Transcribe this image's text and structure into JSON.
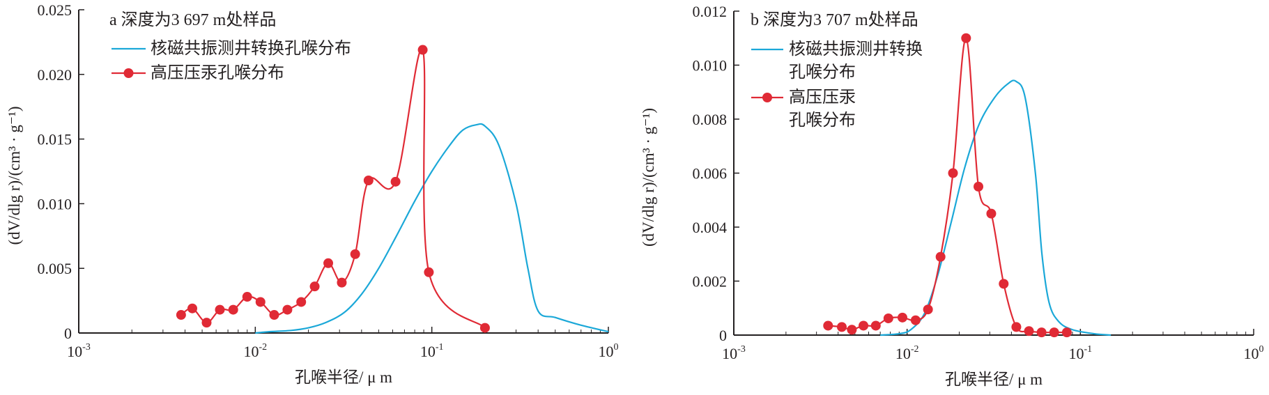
{
  "chart_data": [
    {
      "type": "line",
      "title": "a 深度为3 697 m处样品",
      "xscale": "log",
      "xlim": [
        0.001,
        1
      ],
      "ylim": [
        0,
        0.025
      ],
      "x_ticks": [
        {
          "value": 0.001,
          "base": "10",
          "exp": "-3"
        },
        {
          "value": 0.01,
          "base": "10",
          "exp": "-2"
        },
        {
          "value": 0.1,
          "base": "10",
          "exp": "-1"
        },
        {
          "value": 1,
          "base": "10",
          "exp": "0"
        }
      ],
      "y_ticks": [
        {
          "value": 0,
          "label": "0"
        },
        {
          "value": 0.005,
          "label": "0.005"
        },
        {
          "value": 0.01,
          "label": "0.010"
        },
        {
          "value": 0.015,
          "label": "0.015"
        },
        {
          "value": 0.02,
          "label": "0.020"
        },
        {
          "value": 0.025,
          "label": "0.025"
        }
      ],
      "xlabel": "孔喉半径/ μ m",
      "ylabel": "(dV/dlg r)/(cm³ · g⁻¹)",
      "grid": false,
      "legend_position": "top-left",
      "series": [
        {
          "name": "核磁共振测井转换孔喉分布",
          "color": "#1ba8d8",
          "marker": "none",
          "points": [
            [
              0.01,
              0
            ],
            [
              0.012,
              0.0001
            ],
            [
              0.016,
              0.0002
            ],
            [
              0.02,
              0.0004
            ],
            [
              0.025,
              0.0008
            ],
            [
              0.032,
              0.0016
            ],
            [
              0.04,
              0.003
            ],
            [
              0.05,
              0.005
            ],
            [
              0.063,
              0.0075
            ],
            [
              0.08,
              0.0102
            ],
            [
              0.1,
              0.0125
            ],
            [
              0.126,
              0.0145
            ],
            [
              0.15,
              0.0157
            ],
            [
              0.178,
              0.0161
            ],
            [
              0.2,
              0.016
            ],
            [
              0.24,
              0.0145
            ],
            [
              0.3,
              0.01
            ],
            [
              0.35,
              0.005
            ],
            [
              0.4,
              0.0017
            ],
            [
              0.5,
              0.0012
            ],
            [
              0.7,
              0.0006
            ],
            [
              1.0,
              0.0001
            ]
          ]
        },
        {
          "name": "高压压汞孔喉分布",
          "color": "#e02a35",
          "marker": "circle",
          "points": [
            [
              0.0038,
              0.0014
            ],
            [
              0.0044,
              0.0019
            ],
            [
              0.0053,
              0.0008
            ],
            [
              0.0063,
              0.0018
            ],
            [
              0.0075,
              0.0018
            ],
            [
              0.009,
              0.0028
            ],
            [
              0.0107,
              0.0024
            ],
            [
              0.0128,
              0.0014
            ],
            [
              0.0152,
              0.0018
            ],
            [
              0.0182,
              0.0024
            ],
            [
              0.0217,
              0.0036
            ],
            [
              0.0259,
              0.0054
            ],
            [
              0.0309,
              0.0039
            ],
            [
              0.0368,
              0.0061
            ],
            [
              0.0438,
              0.0118
            ],
            [
              0.0623,
              0.0117
            ],
            [
              0.0888,
              0.0219
            ],
            [
              0.0962,
              0.0047
            ],
            [
              0.2,
              0.0004
            ]
          ]
        }
      ]
    },
    {
      "type": "line",
      "title": "b 深度为3 707 m处样品",
      "xscale": "log",
      "xlim": [
        0.001,
        1
      ],
      "ylim": [
        0,
        0.012
      ],
      "x_ticks": [
        {
          "value": 0.001,
          "base": "10",
          "exp": "-3"
        },
        {
          "value": 0.01,
          "base": "10",
          "exp": "-2"
        },
        {
          "value": 0.1,
          "base": "10",
          "exp": "-1"
        },
        {
          "value": 1,
          "base": "10",
          "exp": "0"
        }
      ],
      "y_ticks": [
        {
          "value": 0,
          "label": "0"
        },
        {
          "value": 0.002,
          "label": "0.002"
        },
        {
          "value": 0.004,
          "label": "0.004"
        },
        {
          "value": 0.006,
          "label": "0.006"
        },
        {
          "value": 0.008,
          "label": "0.008"
        },
        {
          "value": 0.01,
          "label": "0.010"
        },
        {
          "value": 0.012,
          "label": "0.012"
        }
      ],
      "xlabel": "孔喉半径/ μ m",
      "ylabel": "(dV/dlg r)/(cm³ · g⁻¹)",
      "grid": false,
      "legend_position": "top-left",
      "series": [
        {
          "name": "核磁共振测井转换孔喉分布",
          "color": "#1ba8d8",
          "marker": "none",
          "points": [
            [
              0.007,
              0
            ],
            [
              0.009,
              5e-05
            ],
            [
              0.0105,
              0.0002
            ],
            [
              0.0126,
              0.0008
            ],
            [
              0.015,
              0.0022
            ],
            [
              0.018,
              0.0042
            ],
            [
              0.0215,
              0.0062
            ],
            [
              0.026,
              0.0078
            ],
            [
              0.032,
              0.0088
            ],
            [
              0.038,
              0.0093
            ],
            [
              0.0425,
              0.0094
            ],
            [
              0.048,
              0.0088
            ],
            [
              0.055,
              0.006
            ],
            [
              0.06,
              0.003
            ],
            [
              0.066,
              0.0012
            ],
            [
              0.075,
              0.0005
            ],
            [
              0.09,
              0.0002
            ],
            [
              0.12,
              5e-05
            ],
            [
              0.15,
              0
            ]
          ]
        },
        {
          "name": "高压压汞孔喉分布",
          "color": "#e02a35",
          "marker": "circle",
          "points": [
            [
              0.0035,
              0.00035
            ],
            [
              0.0042,
              0.0003
            ],
            [
              0.0048,
              0.0002
            ],
            [
              0.0056,
              0.00035
            ],
            [
              0.0066,
              0.00035
            ],
            [
              0.0078,
              0.00062
            ],
            [
              0.0094,
              0.00065
            ],
            [
              0.0112,
              0.00055
            ],
            [
              0.0132,
              0.00095
            ],
            [
              0.0156,
              0.0029
            ],
            [
              0.0184,
              0.006
            ],
            [
              0.0219,
              0.011
            ],
            [
              0.0258,
              0.0055
            ],
            [
              0.0306,
              0.0045
            ],
            [
              0.0361,
              0.0019
            ],
            [
              0.0427,
              0.0003
            ],
            [
              0.0505,
              0.00015
            ],
            [
              0.0597,
              0.0001
            ],
            [
              0.0706,
              0.0001
            ],
            [
              0.0835,
              0.0001
            ]
          ]
        }
      ]
    }
  ]
}
